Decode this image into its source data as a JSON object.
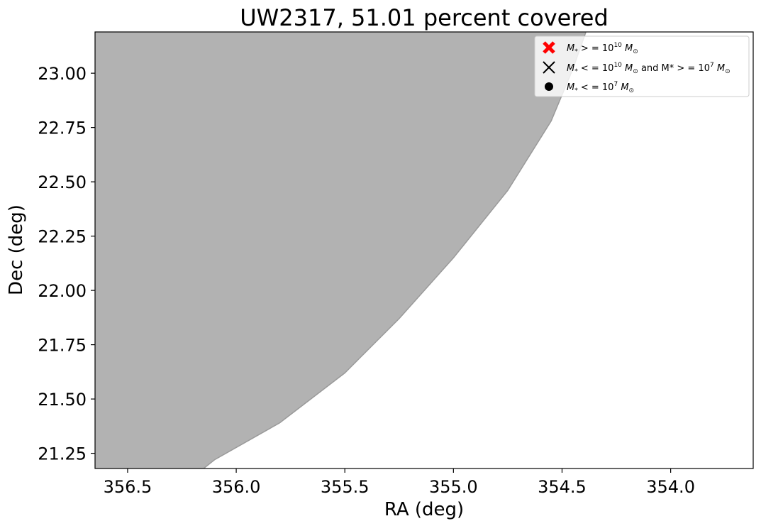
{
  "chart_data": {
    "type": "area",
    "title": "UW2317, 51.01 percent covered",
    "xlabel": "RA (deg)",
    "ylabel": "Dec (deg)",
    "xlim": [
      356.65,
      353.62
    ],
    "ylim": [
      21.18,
      23.19
    ],
    "x_inverted": true,
    "grid": false,
    "x_ticks": [
      356.5,
      356.0,
      355.5,
      355.0,
      354.5,
      354.0
    ],
    "x_tick_labels": [
      "356.5",
      "356.0",
      "355.5",
      "355.0",
      "354.5",
      "354.0"
    ],
    "y_ticks": [
      21.25,
      21.5,
      21.75,
      22.0,
      22.25,
      22.5,
      22.75,
      23.0
    ],
    "y_tick_labels": [
      "21.25",
      "21.50",
      "21.75",
      "22.00",
      "22.25",
      "22.50",
      "22.75",
      "23.00"
    ],
    "coverage_region": {
      "fill_color": "#b2b2b2",
      "edge_color": "#9a9a9a",
      "boundary": [
        {
          "x": 356.15,
          "y": 21.18
        },
        {
          "x": 356.1,
          "y": 21.22
        },
        {
          "x": 355.8,
          "y": 21.39
        },
        {
          "x": 355.5,
          "y": 21.62
        },
        {
          "x": 355.25,
          "y": 21.87
        },
        {
          "x": 355.0,
          "y": 22.15
        },
        {
          "x": 354.75,
          "y": 22.46
        },
        {
          "x": 354.55,
          "y": 22.78
        },
        {
          "x": 354.45,
          "y": 23.02
        },
        {
          "x": 354.39,
          "y": 23.19
        }
      ]
    },
    "legend": {
      "placement": "upper right",
      "entries": [
        {
          "marker": "bold-x",
          "color": "#ff0000",
          "label_main": "M",
          "label_sub": "*",
          "label_rest": " > = 10",
          "label_sup": "10",
          "label_tail": " M",
          "label_tail_sub": "⊙",
          "label_extra": "",
          "label_extra_sup": "",
          "label_extra_tail": "",
          "label_extra_tail_sub": ""
        },
        {
          "marker": "thin-x",
          "color": "#000000",
          "label_main": "M",
          "label_sub": "*",
          "label_rest": " < = 10",
          "label_sup": "10",
          "label_tail": " M",
          "label_tail_sub": "⊙",
          "label_extra": "  and M* > = 10",
          "label_extra_sup": "7",
          "label_extra_tail": " M",
          "label_extra_tail_sub": "⊙"
        },
        {
          "marker": "dot",
          "color": "#000000",
          "label_main": "M",
          "label_sub": "*",
          "label_rest": " < = 10",
          "label_sup": "7",
          "label_tail": " M",
          "label_tail_sub": "⊙",
          "label_extra": "",
          "label_extra_sup": "",
          "label_extra_tail": "",
          "label_extra_tail_sub": ""
        }
      ]
    }
  }
}
